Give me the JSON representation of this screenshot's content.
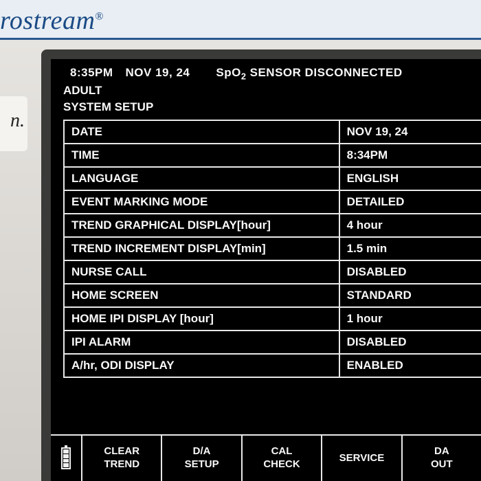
{
  "brand": "rostream",
  "brand_symbol": "®",
  "side_text": "n.",
  "header": {
    "time": "8:35PM",
    "date": "NOV 19, 24",
    "alert": "SpO₂ SENSOR DISCONNECTED"
  },
  "patient_type": "ADULT",
  "section": "SYSTEM SETUP",
  "settings": [
    {
      "label": "DATE",
      "value": "NOV 19, 24"
    },
    {
      "label": "TIME",
      "value": "8:34PM"
    },
    {
      "label": "LANGUAGE",
      "value": "ENGLISH"
    },
    {
      "label": "EVENT MARKING MODE",
      "value": "DETAILED"
    },
    {
      "label": "TREND GRAPHICAL DISPLAY[hour]",
      "value": "4 hour"
    },
    {
      "label": "TREND INCREMENT DISPLAY[min]",
      "value": "1.5 min"
    },
    {
      "label": "NURSE CALL",
      "value": "DISABLED"
    },
    {
      "label": "HOME SCREEN",
      "value": "STANDARD"
    },
    {
      "label": "HOME IPI DISPLAY [hour]",
      "value": "1 hour"
    },
    {
      "label": "IPI ALARM",
      "value": "DISABLED"
    },
    {
      "label": "A/hr, ODI DISPLAY",
      "value": "ENABLED"
    }
  ],
  "battery_level": 4,
  "menu": [
    "CLEAR\nTREND",
    "D/A\nSETUP",
    "CAL\nCHECK",
    "SERVICE",
    "DA\nOUT"
  ],
  "colors": {
    "screen_bg": "#000000",
    "text": "#f8f8f8",
    "border": "#e8e8e8",
    "bezel": "#3a3a38",
    "brand": "#1a4a85"
  }
}
